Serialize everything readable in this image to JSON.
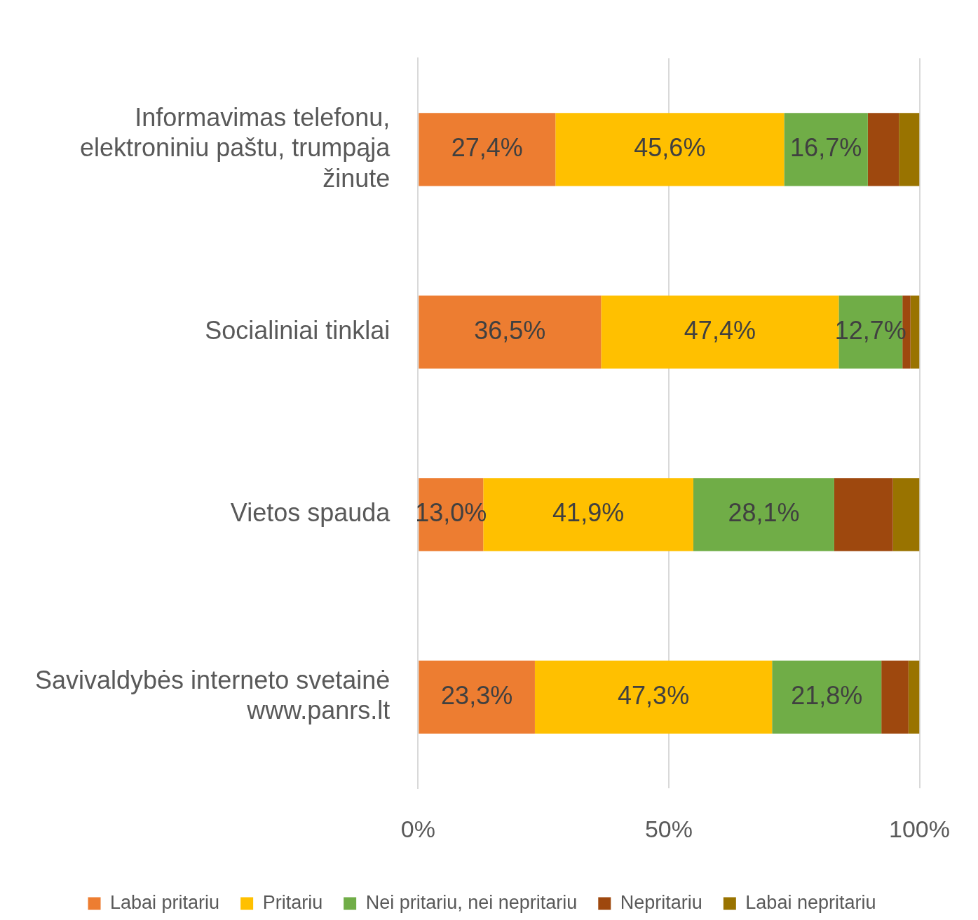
{
  "chart_data": {
    "type": "bar",
    "orientation": "horizontal",
    "stacked": true,
    "categories": [
      "Informavimas telefonu, elektroniniu paštu, trumpąja žinute",
      "Socialiniai tinklai",
      "Vietos spauda",
      "Savivaldybės interneto svetainė www.panrs.lt"
    ],
    "series": [
      {
        "name": "Labai pritariu",
        "color": "#ed7d31",
        "values": [
          27.4,
          36.5,
          13.0,
          23.3
        ],
        "value_labels": [
          "27,4%",
          "36,5%",
          "13,0%",
          "23,3%"
        ]
      },
      {
        "name": "Pritariu",
        "color": "#ffc000",
        "values": [
          45.6,
          47.4,
          41.9,
          47.3
        ],
        "value_labels": [
          "45,6%",
          "47,4%",
          "41,9%",
          "47,3%"
        ]
      },
      {
        "name": "Nei pritariu, nei nepritariu",
        "color": "#70ad47",
        "values": [
          16.7,
          12.7,
          28.1,
          21.8
        ],
        "value_labels": [
          "16,7%",
          "12,7%",
          "28,1%",
          "21,8%"
        ]
      },
      {
        "name": "Nepritariu",
        "color": "#9e480e",
        "values": [
          6.2,
          1.6,
          11.7,
          5.4
        ]
      },
      {
        "name": "Labai nepritariu",
        "color": "#997300",
        "values": [
          4.1,
          1.8,
          5.3,
          2.2
        ]
      }
    ],
    "xlim": [
      0,
      100
    ],
    "xticks": [
      {
        "value": 0,
        "label": "0%"
      },
      {
        "value": 50,
        "label": "50%"
      },
      {
        "value": 100,
        "label": "100%"
      }
    ],
    "grid": "x",
    "legend": "bottom"
  }
}
